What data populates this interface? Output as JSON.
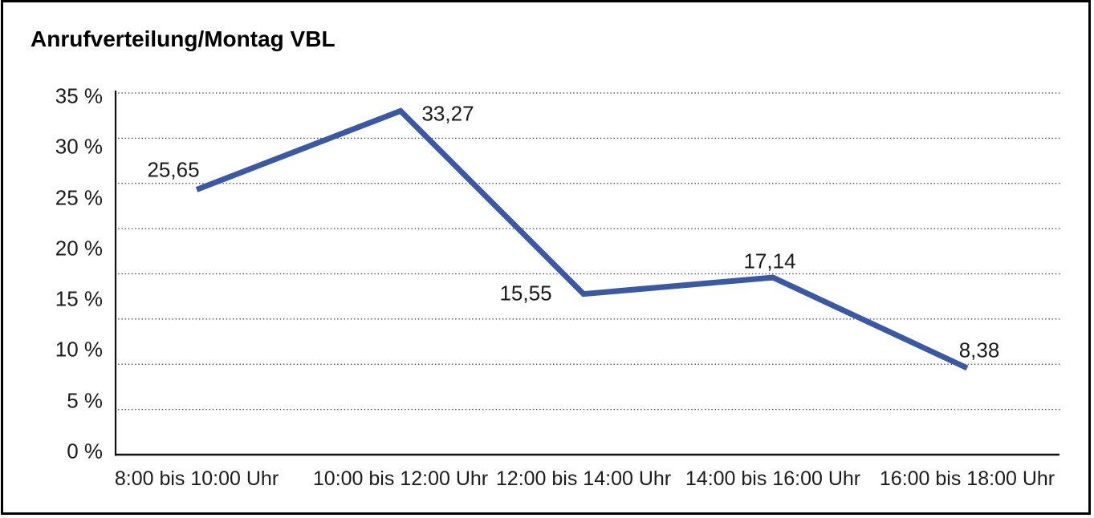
{
  "title": "Anrufverteilung/Montag VBL",
  "chart_data": {
    "type": "line",
    "title": "Anrufverteilung/Montag VBL",
    "categories": [
      "8:00 bis 10:00 Uhr",
      "10:00 bis 12:00 Uhr",
      "12:00 bis 14:00 Uhr",
      "14:00 bis 16:00 Uhr",
      "16:00 bis 18:00 Uhr"
    ],
    "values": [
      25.65,
      33.27,
      15.55,
      17.14,
      8.38
    ],
    "data_labels": [
      "25,65",
      "33,27",
      "15,55",
      "17,14",
      "8,38"
    ],
    "y_tick_labels": [
      "35 %",
      "30 %",
      "25 %",
      "20 %",
      "15 %",
      "10 %",
      "5 %",
      "0 %"
    ],
    "ylim": [
      0,
      35
    ],
    "y_major_unit": 5,
    "xlabel": "",
    "ylabel": "",
    "grid": "horizontal-dotted",
    "legend": "none",
    "line_color": "#3B58A2",
    "axis_color": "#111111",
    "text_color": "#1c1c1c"
  }
}
